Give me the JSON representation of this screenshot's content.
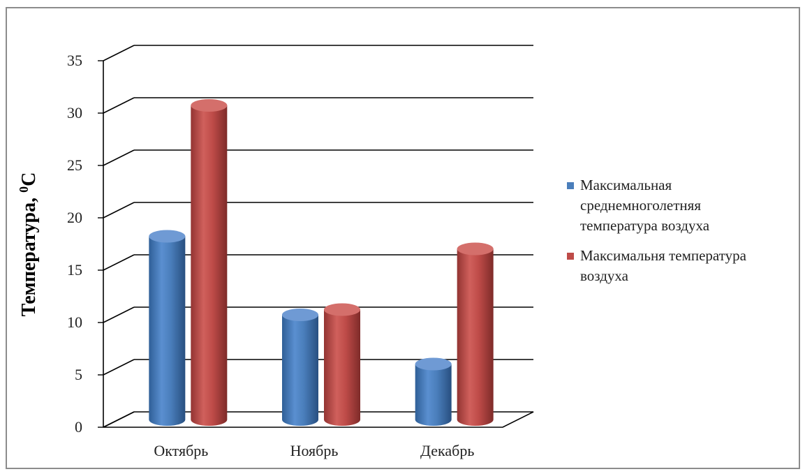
{
  "chart_data": {
    "type": "bar",
    "style": "3d-cylinder",
    "title": "",
    "xlabel": "",
    "ylabel": "Температура, ",
    "ylabel_unit_sup": "0",
    "ylabel_unit": "С",
    "ylim": [
      0,
      35
    ],
    "ytick_step": 5,
    "yticks": [
      "0",
      "5",
      "10",
      "15",
      "20",
      "25",
      "30",
      "35"
    ],
    "grid": true,
    "legend_position": "right",
    "categories": [
      "Октябрь",
      "Ноябрь",
      "Декабрь"
    ],
    "series": [
      {
        "name": "Максимальная среднемноголетняя температура воздуха",
        "legend_lines": [
          "Максимальная",
          "среднемноголетняя",
          "температура воздуха"
        ],
        "color": "#4a7ebb",
        "values": [
          17.5,
          10,
          5.3
        ]
      },
      {
        "name": "Максимальня температура воздуха",
        "legend_lines": [
          "Максимальня температура",
          "воздуха"
        ],
        "color": "#be4b48",
        "values": [
          30,
          10.5,
          16.3
        ]
      }
    ]
  }
}
